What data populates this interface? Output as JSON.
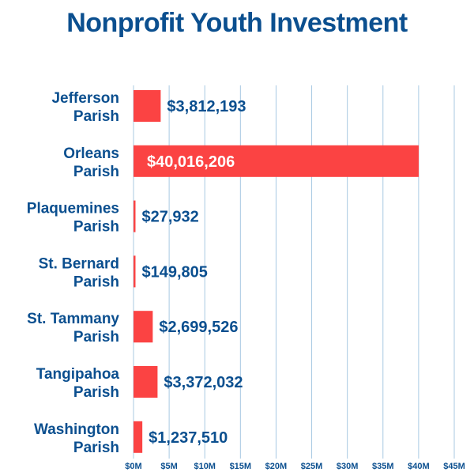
{
  "chart_data": {
    "type": "bar",
    "orientation": "horizontal",
    "title": "Nonprofit Youth Investment",
    "categories": [
      [
        "Jefferson",
        "Parish"
      ],
      [
        "Orleans",
        "Parish"
      ],
      [
        "Plaquemines",
        "Parish"
      ],
      [
        "St. Bernard",
        "Parish"
      ],
      [
        "St. Tammany",
        "Parish"
      ],
      [
        "Tangipahoa",
        "Parish"
      ],
      [
        "Washington",
        "Parish"
      ]
    ],
    "values": [
      3812193,
      40016206,
      27932,
      149805,
      2699526,
      3372032,
      1237510
    ],
    "value_labels": [
      "$3,812,193",
      "$40,016,206",
      "$27,932",
      "$149,805",
      "$2,699,526",
      "$3,372,032",
      "$1,237,510"
    ],
    "xlim": [
      0,
      45000000
    ],
    "xticks": [
      0,
      5000000,
      10000000,
      15000000,
      20000000,
      25000000,
      30000000,
      35000000,
      40000000,
      45000000
    ],
    "xtick_labels": [
      "$0M",
      "$5M",
      "$10M",
      "$15M",
      "$20M",
      "$25M",
      "$30M",
      "$35M",
      "$40M",
      "$45M"
    ],
    "grid": "vertical",
    "colors": {
      "bar": "#fb4343",
      "text": "#0b4f8f",
      "grid": "#a8c8e2"
    }
  }
}
